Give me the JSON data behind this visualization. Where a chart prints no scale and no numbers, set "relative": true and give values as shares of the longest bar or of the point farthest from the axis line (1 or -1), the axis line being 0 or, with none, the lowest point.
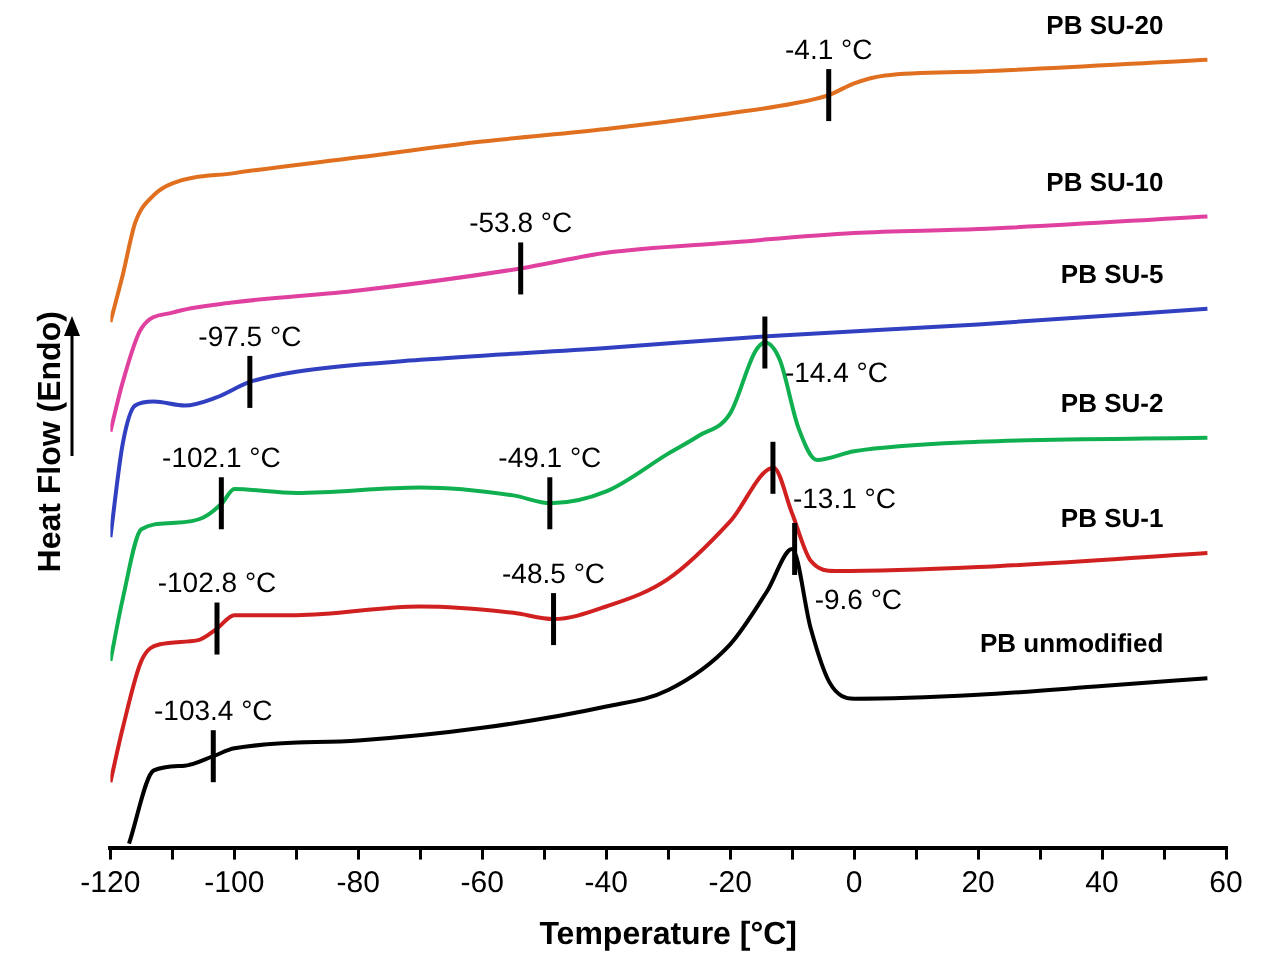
{
  "chart_data": {
    "type": "line",
    "relative": true,
    "xlabel": "Temperature [°C]",
    "ylabel": "Heat Flow (Endo)",
    "marker": "none",
    "legend": false,
    "xlim": [
      -120,
      60
    ],
    "xticks": [
      -120,
      {
        "value": -110,
        "label": null
      },
      -100,
      {
        "value": -90,
        "label": null
      },
      -80,
      {
        "value": -70,
        "label": null
      },
      -60,
      {
        "value": -50,
        "label": null
      },
      -40,
      {
        "value": -30,
        "label": null
      },
      -20,
      {
        "value": -10,
        "label": null
      },
      0,
      {
        "value": 10,
        "label": null
      },
      20,
      {
        "value": 30,
        "label": null
      },
      40,
      {
        "value": 50,
        "label": null
      },
      60
    ],
    "series": [
      {
        "name": "PB SU-20",
        "color": "#e07020",
        "x": [
          -120,
          -118,
          -116,
          -113,
          -110,
          -100,
          -80,
          -60,
          -40,
          -20,
          -10,
          -4.1,
          0,
          5,
          20,
          57
        ],
        "values": [
          0.667,
          0.727,
          0.793,
          0.828,
          0.843,
          0.856,
          0.876,
          0.896,
          0.912,
          0.932,
          0.944,
          0.955,
          0.97,
          0.98,
          0.985,
          1
        ]
      },
      {
        "name": "PB SU-10",
        "color": "#e040a0",
        "x": [
          -120,
          -118,
          -115,
          -110,
          -100,
          -80,
          -53.8,
          -40,
          -20,
          0,
          20,
          57
        ],
        "values": [
          0.528,
          0.591,
          0.659,
          0.679,
          0.692,
          0.707,
          0.735,
          0.755,
          0.768,
          0.78,
          0.785,
          0.801
        ]
      },
      {
        "name": "PB SU-5",
        "color": "#3040c0",
        "x": [
          -120,
          -118,
          -116,
          -113,
          -108,
          -103,
          -97.5,
          -90,
          -70,
          -40,
          -14,
          20,
          57
        ],
        "values": [
          0.394,
          0.513,
          0.561,
          0.566,
          0.561,
          0.571,
          0.591,
          0.604,
          0.619,
          0.634,
          0.649,
          0.664,
          0.684
        ]
      },
      {
        "name": "PB SU-2",
        "color": "#10b050",
        "x": [
          -120,
          -118,
          -115,
          -110,
          -105,
          -102,
          -100,
          -90,
          -70,
          -55,
          -49,
          -40,
          -30,
          -25,
          -20,
          -16,
          -14.4,
          -12,
          -9,
          -6,
          0,
          20,
          57
        ],
        "values": [
          0.237,
          0.316,
          0.404,
          0.412,
          0.419,
          0.437,
          0.455,
          0.45,
          0.457,
          0.447,
          0.437,
          0.452,
          0.5,
          0.523,
          0.551,
          0.629,
          0.641,
          0.619,
          0.533,
          0.492,
          0.503,
          0.515,
          0.52
        ]
      },
      {
        "name": "PB SU-1",
        "color": "#d02020",
        "x": [
          -120,
          -118,
          -115,
          -112,
          -106,
          -102.8,
          -100,
          -90,
          -70,
          -55,
          -48.5,
          -40,
          -30,
          -20,
          -13,
          -10,
          -7,
          -3,
          20,
          57
        ],
        "values": [
          0.083,
          0.152,
          0.237,
          0.258,
          0.263,
          0.278,
          0.295,
          0.295,
          0.306,
          0.298,
          0.29,
          0.306,
          0.341,
          0.414,
          0.482,
          0.424,
          0.364,
          0.351,
          0.356,
          0.374
        ]
      },
      {
        "name": "PB unmodified",
        "color": "#000000",
        "x": [
          -117,
          -113,
          -108,
          -103.4,
          -100,
          -80,
          -60,
          -40,
          -30,
          -20,
          -14,
          -10,
          -7,
          -4,
          0,
          20,
          40,
          57
        ],
        "values": [
          0.005,
          0.098,
          0.104,
          0.116,
          0.126,
          0.136,
          0.152,
          0.179,
          0.2,
          0.258,
          0.326,
          0.379,
          0.278,
          0.21,
          0.189,
          0.194,
          0.205,
          0.215
        ]
      }
    ],
    "annotations": [
      {
        "text": "-4.1 °C",
        "x": -4.1,
        "y": 0.955
      },
      {
        "text": "-53.8 °C",
        "x": -53.8,
        "y": 0.735
      },
      {
        "text": "-97.5 °C",
        "x": -97.5,
        "y": 0.591
      },
      {
        "text": "-14.4 °C",
        "x": -14.4,
        "y": 0.641
      },
      {
        "text": "-102.1 °C",
        "x": -102.1,
        "y": 0.437
      },
      {
        "text": "-49.1 °C",
        "x": -49.1,
        "y": 0.437
      },
      {
        "text": "-13.1 °C",
        "x": -13.1,
        "y": 0.482
      },
      {
        "text": "-102.8 °C",
        "x": -102.8,
        "y": 0.278
      },
      {
        "text": "-48.5 °C",
        "x": -48.5,
        "y": 0.29
      },
      {
        "text": "-9.6 °C",
        "x": -9.6,
        "y": 0.379
      },
      {
        "text": "-103.4 °C",
        "x": -103.4,
        "y": 0.116
      }
    ]
  }
}
